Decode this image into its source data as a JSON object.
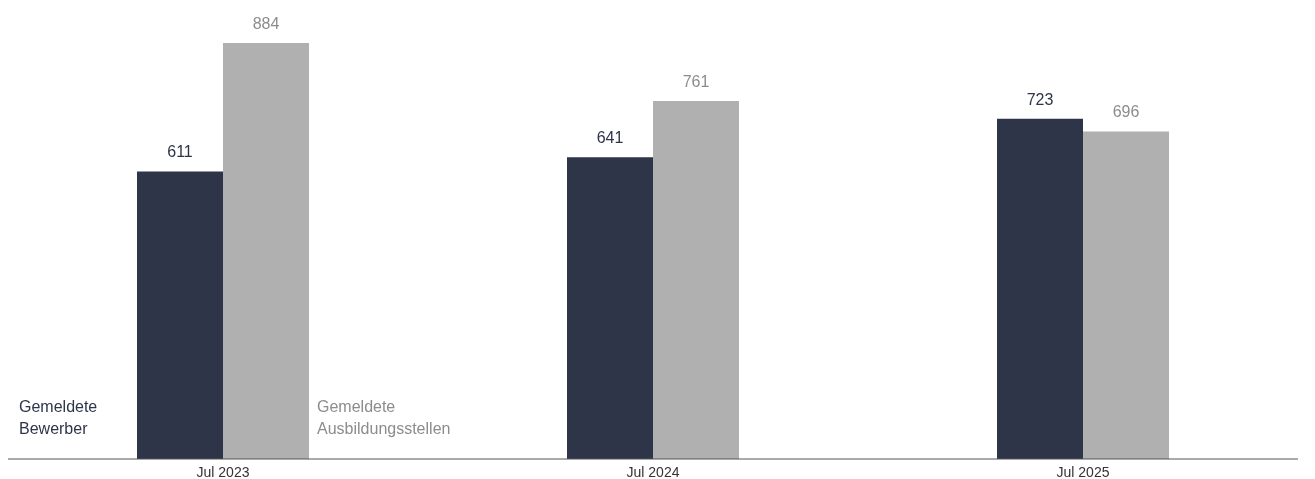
{
  "chart_data": {
    "type": "bar",
    "categories": [
      "Jul 2023",
      "Jul 2024",
      "Jul 2025"
    ],
    "series": [
      {
        "name": "Gemeldete Bewerber",
        "color": "#2e3549",
        "values": [
          611,
          641,
          723
        ]
      },
      {
        "name": "Gemeldete Ausbildungsstellen",
        "color": "#b0b0b0",
        "values": [
          884,
          761,
          696
        ]
      }
    ],
    "data_labels": true,
    "grid": false
  }
}
